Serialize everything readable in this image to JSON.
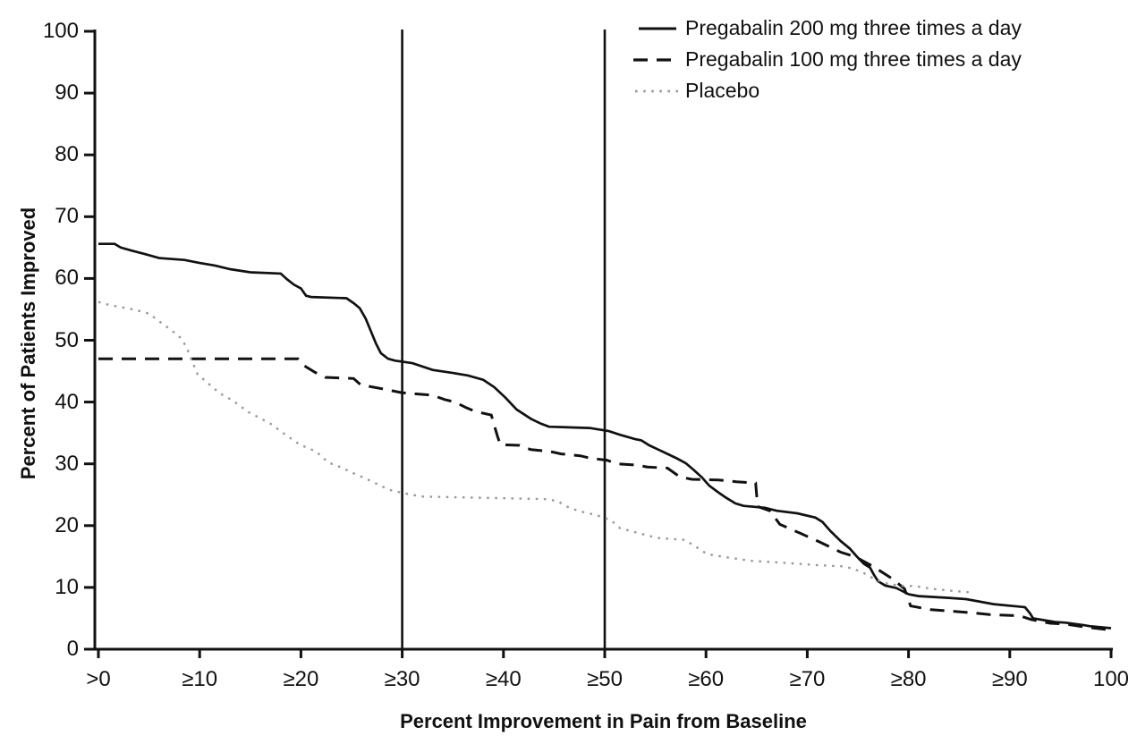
{
  "figure": {
    "background_color": "#ffffff",
    "axis_color": "#111111"
  },
  "chart_data": {
    "type": "line",
    "title": "",
    "xlabel": "Percent Improvement in Pain from Baseline",
    "ylabel": "Percent of Patients Improved",
    "xlim": [
      0,
      100
    ],
    "ylim": [
      0,
      100
    ],
    "grid": false,
    "legend_position": "top-right",
    "reference_lines_x": [
      30,
      50
    ],
    "x_tick_values": [
      0,
      10,
      20,
      30,
      40,
      50,
      60,
      70,
      80,
      90,
      100
    ],
    "x_tick_labels": [
      ">0",
      "≥10",
      "≥20",
      "≥30",
      "≥40",
      "≥50",
      "≥60",
      "≥70",
      "≥80",
      "≥90",
      "100"
    ],
    "y_tick_values": [
      0,
      10,
      20,
      30,
      40,
      50,
      60,
      70,
      80,
      90,
      100
    ],
    "y_tick_labels": [
      "0",
      "10",
      "20",
      "30",
      "40",
      "50",
      "60",
      "70",
      "80",
      "90",
      "100"
    ],
    "series": [
      {
        "name": "Pregabalin 200 mg three times a day",
        "style": "solid",
        "color": "#111111",
        "width": 2.7,
        "dash": "",
        "points": [
          [
            0,
            65.6
          ],
          [
            1.6,
            65.6
          ],
          [
            2.2,
            65
          ],
          [
            3.3,
            64.5
          ],
          [
            4.5,
            64
          ],
          [
            6,
            63.3
          ],
          [
            8.5,
            63
          ],
          [
            10,
            62.5
          ],
          [
            11.5,
            62.1
          ],
          [
            13,
            61.5
          ],
          [
            15,
            61
          ],
          [
            18,
            60.8
          ],
          [
            18.6,
            59.9
          ],
          [
            19.3,
            59
          ],
          [
            20,
            58.4
          ],
          [
            20.5,
            57.2
          ],
          [
            21,
            57
          ],
          [
            24.5,
            56.8
          ],
          [
            25.2,
            56
          ],
          [
            25.8,
            55.2
          ],
          [
            26.4,
            53.5
          ],
          [
            26.9,
            51.5
          ],
          [
            27.4,
            49.5
          ],
          [
            27.9,
            47.9
          ],
          [
            28.6,
            47
          ],
          [
            29.3,
            46.7
          ],
          [
            31,
            46.3
          ],
          [
            33,
            45.2
          ],
          [
            35,
            44.7
          ],
          [
            36.5,
            44.3
          ],
          [
            38,
            43.6
          ],
          [
            39.1,
            42.4
          ],
          [
            40.2,
            40.7
          ],
          [
            41.3,
            38.8
          ],
          [
            42.7,
            37.3
          ],
          [
            43.7,
            36.5
          ],
          [
            44.5,
            36
          ],
          [
            48.5,
            35.8
          ],
          [
            50.4,
            35.3
          ],
          [
            51.5,
            34.7
          ],
          [
            53,
            34
          ],
          [
            53.6,
            33.8
          ],
          [
            54.4,
            33
          ],
          [
            55.3,
            32.3
          ],
          [
            56.2,
            31.6
          ],
          [
            57.1,
            30.9
          ],
          [
            58,
            30.1
          ],
          [
            58.8,
            29
          ],
          [
            59.6,
            27.8
          ],
          [
            60.3,
            26.5
          ],
          [
            61.2,
            25.4
          ],
          [
            62,
            24.5
          ],
          [
            62.9,
            23.6
          ],
          [
            63.7,
            23.2
          ],
          [
            65.8,
            22.9
          ],
          [
            67,
            22.4
          ],
          [
            69,
            22
          ],
          [
            70.8,
            21.3
          ],
          [
            71.5,
            20.6
          ],
          [
            72.3,
            19.1
          ],
          [
            73.3,
            17.5
          ],
          [
            74.2,
            16.3
          ],
          [
            74.9,
            15
          ],
          [
            75.6,
            13.8
          ],
          [
            76.2,
            13.2
          ],
          [
            76.6,
            12
          ],
          [
            77,
            11
          ],
          [
            77.7,
            10.3
          ],
          [
            78.8,
            9.9
          ],
          [
            80,
            8.9
          ],
          [
            81,
            8.6
          ],
          [
            84,
            8.3
          ],
          [
            85.7,
            8.1
          ],
          [
            88.4,
            7.3
          ],
          [
            91.5,
            6.8
          ],
          [
            92,
            5.8
          ],
          [
            92.3,
            5
          ],
          [
            94.5,
            4.4
          ],
          [
            95.5,
            4.3
          ],
          [
            97.3,
            3.9
          ],
          [
            98,
            3.7
          ],
          [
            100,
            3.4
          ]
        ]
      },
      {
        "name": "Pregabalin 100 mg three times a day",
        "style": "dashed",
        "color": "#111111",
        "width": 3,
        "dash": "16 10",
        "points": [
          [
            0,
            47
          ],
          [
            19.7,
            47
          ],
          [
            20.3,
            45.9
          ],
          [
            21.4,
            44.8
          ],
          [
            22.4,
            44
          ],
          [
            25.2,
            43.8
          ],
          [
            25.9,
            42.8
          ],
          [
            28.5,
            42
          ],
          [
            30,
            41.5
          ],
          [
            33,
            41.1
          ],
          [
            34.2,
            40.4
          ],
          [
            35.2,
            40
          ],
          [
            36.3,
            39.1
          ],
          [
            37.2,
            38.5
          ],
          [
            38.8,
            37.9
          ],
          [
            39.4,
            34.5
          ],
          [
            39.7,
            33.1
          ],
          [
            41.6,
            33
          ],
          [
            42.7,
            32.3
          ],
          [
            44.6,
            32
          ],
          [
            45.7,
            31.6
          ],
          [
            47.6,
            31.3
          ],
          [
            48.6,
            30.9
          ],
          [
            50.2,
            30.6
          ],
          [
            51.2,
            30
          ],
          [
            53.2,
            29.8
          ],
          [
            54.2,
            29.5
          ],
          [
            56.2,
            29.3
          ],
          [
            57.4,
            27.9
          ],
          [
            58.6,
            27.5
          ],
          [
            61.2,
            27.4
          ],
          [
            63,
            27.1
          ],
          [
            64.9,
            26.9
          ],
          [
            65.1,
            23.1
          ],
          [
            66.3,
            22.4
          ],
          [
            67.3,
            20.2
          ],
          [
            69.4,
            18.7
          ],
          [
            71.3,
            17.3
          ],
          [
            73.3,
            15.7
          ],
          [
            74.7,
            15
          ],
          [
            76.6,
            13.3
          ],
          [
            78.3,
            11.5
          ],
          [
            79.6,
            9.8
          ],
          [
            80.2,
            7
          ],
          [
            82.2,
            6.4
          ],
          [
            84,
            6.2
          ],
          [
            86.2,
            5.9
          ],
          [
            88,
            5.6
          ],
          [
            91,
            5.4
          ],
          [
            92.1,
            4.8
          ],
          [
            94,
            4.2
          ],
          [
            95.4,
            4.1
          ],
          [
            97.4,
            3.6
          ],
          [
            100,
            3.1
          ]
        ]
      },
      {
        "name": "Placebo",
        "style": "dotted",
        "color": "#9a9a9a",
        "width": 2.4,
        "dash": "2.6 6.5",
        "points": [
          [
            0,
            56.2
          ],
          [
            1.1,
            55.7
          ],
          [
            3.7,
            54.9
          ],
          [
            5,
            54.3
          ],
          [
            6.3,
            52.7
          ],
          [
            7.3,
            51.5
          ],
          [
            8.1,
            50.4
          ],
          [
            8.7,
            48.9
          ],
          [
            9.2,
            46.8
          ],
          [
            9.8,
            44.5
          ],
          [
            11,
            42.8
          ],
          [
            12,
            41.4
          ],
          [
            13.3,
            40.2
          ],
          [
            14.8,
            38.4
          ],
          [
            16.3,
            37.1
          ],
          [
            17,
            36.5
          ],
          [
            18.3,
            34.9
          ],
          [
            19.9,
            33.1
          ],
          [
            21.5,
            32
          ],
          [
            22.7,
            30.2
          ],
          [
            24,
            29.4
          ],
          [
            25.3,
            28.4
          ],
          [
            26.7,
            27.4
          ],
          [
            28.7,
            25.8
          ],
          [
            30.3,
            25.2
          ],
          [
            32,
            24.7
          ],
          [
            35,
            24.6
          ],
          [
            38,
            24.5
          ],
          [
            41,
            24.4
          ],
          [
            44,
            24.3
          ],
          [
            45.3,
            24
          ],
          [
            46.5,
            22.9
          ],
          [
            47.6,
            22.3
          ],
          [
            49.2,
            21.7
          ],
          [
            50.6,
            20.9
          ],
          [
            51.5,
            19.6
          ],
          [
            53.3,
            18.8
          ],
          [
            55.2,
            18
          ],
          [
            57.9,
            17.7
          ],
          [
            58.9,
            16.7
          ],
          [
            60.1,
            15.4
          ],
          [
            61.9,
            14.9
          ],
          [
            63.2,
            14.6
          ],
          [
            64.5,
            14.3
          ],
          [
            66.6,
            14.1
          ],
          [
            68.5,
            13.9
          ],
          [
            71,
            13.6
          ],
          [
            73.6,
            13.4
          ],
          [
            74.6,
            13
          ],
          [
            75.6,
            12.3
          ],
          [
            76.6,
            11.4
          ],
          [
            77.7,
            10.7
          ],
          [
            79,
            10.3
          ],
          [
            80.7,
            10.2
          ],
          [
            82.2,
            9.8
          ],
          [
            84,
            9.5
          ],
          [
            86,
            9.2
          ]
        ]
      }
    ]
  }
}
